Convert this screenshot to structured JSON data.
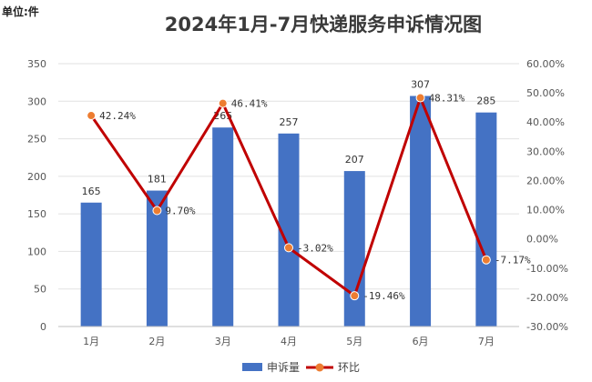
{
  "unit_label": "单位:件",
  "chart_data": {
    "type": "bar",
    "title": "2024年1月-7月快递服务申诉情况图",
    "categories": [
      "1月",
      "2月",
      "3月",
      "4月",
      "5月",
      "6月",
      "7月"
    ],
    "series": [
      {
        "name": "申诉量",
        "kind": "bar",
        "axis": "left",
        "color": "#4472C4",
        "values": [
          165,
          181,
          265,
          257,
          207,
          307,
          285
        ],
        "labels": [
          "165",
          "181",
          "265",
          "257",
          "207",
          "307",
          "285"
        ]
      },
      {
        "name": "环比",
        "kind": "line",
        "axis": "right",
        "line_color": "#C00000",
        "marker_color": "#ED7D31",
        "values": [
          42.24,
          9.7,
          46.41,
          -3.02,
          -19.46,
          48.31,
          -7.17
        ],
        "labels": [
          "42.24%",
          "9.70%",
          "46.41%",
          "-3.02%",
          "-19.46%",
          "48.31%",
          "-7.17%"
        ]
      }
    ],
    "y_left": {
      "min": 0,
      "max": 350,
      "ticks": [
        0,
        50,
        100,
        150,
        200,
        250,
        300,
        350
      ],
      "tick_labels": [
        "0",
        "50",
        "100",
        "150",
        "200",
        "250",
        "300",
        "350"
      ]
    },
    "y_right": {
      "min": -30,
      "max": 60,
      "ticks": [
        -30,
        -20,
        -10,
        0,
        10,
        20,
        30,
        40,
        50,
        60
      ],
      "tick_labels": [
        "-30.00%",
        "-20.00%",
        "-10.00%",
        "0.00%",
        "10.00%",
        "20.00%",
        "30.00%",
        "40.00%",
        "50.00%",
        "60.00%"
      ]
    },
    "grid": true,
    "legend_position": "bottom-center"
  }
}
